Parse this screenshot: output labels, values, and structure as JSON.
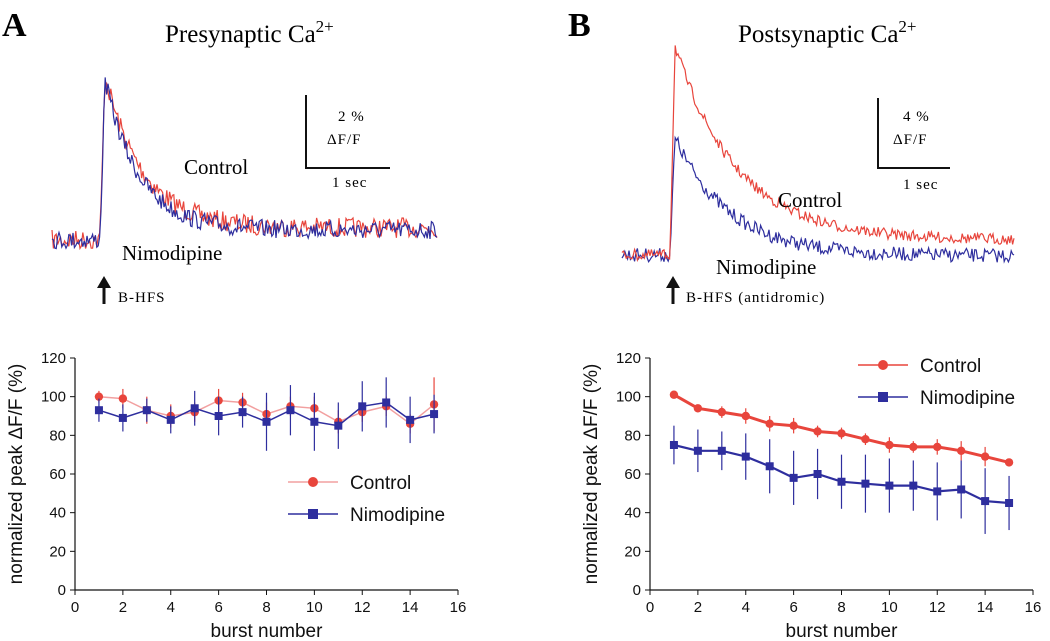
{
  "colors": {
    "control": "#e8453c",
    "nimodipine": "#2e2e9e",
    "control_light": "#f2a0a0",
    "axis": "#111111"
  },
  "panelA": {
    "letter": "A",
    "title": "Presynaptic Ca",
    "title_sup": "2+",
    "scale_pct": "2 %",
    "scale_unit": "ΔF/F",
    "scale_time": "1 sec",
    "label_control": "Control",
    "label_nimodipine": "Nimodipine",
    "stim_label": "B-HFS",
    "arrow_icon": "up-arrow-icon"
  },
  "panelB": {
    "letter": "B",
    "title": "Postsynaptic Ca",
    "title_sup": "2+",
    "scale_pct": "4 %",
    "scale_unit": "ΔF/F",
    "scale_time": "1 sec",
    "label_control": "Control",
    "label_nimodipine": "Nimodipine",
    "stim_label": "B-HFS (antidromic)",
    "arrow_icon": "up-arrow-icon"
  },
  "chart_data": [
    {
      "id": "chartA",
      "type": "line",
      "xlabel": "burst number",
      "ylabel": "normalized peak ΔF/F (%)",
      "xlim": [
        0,
        16
      ],
      "ylim": [
        0,
        120
      ],
      "xticks": [
        0,
        2,
        4,
        6,
        8,
        10,
        12,
        14,
        16
      ],
      "yticks": [
        0,
        20,
        40,
        60,
        80,
        100,
        120
      ],
      "legend_position": "bottom-right",
      "series": [
        {
          "name": "Control",
          "marker": "circle",
          "x": [
            1,
            2,
            3,
            4,
            5,
            6,
            7,
            8,
            9,
            10,
            11,
            12,
            13,
            14,
            15
          ],
          "values": [
            100,
            99,
            93,
            90,
            92,
            98,
            97,
            91,
            95,
            94,
            87,
            92,
            95,
            86,
            96
          ],
          "err": [
            3,
            5,
            7,
            6,
            5,
            6,
            5,
            6,
            5,
            6,
            6,
            5,
            5,
            5,
            14
          ]
        },
        {
          "name": "Nimodipine",
          "marker": "square",
          "x": [
            1,
            2,
            3,
            4,
            5,
            6,
            7,
            8,
            9,
            10,
            11,
            12,
            13,
            14,
            15
          ],
          "values": [
            93,
            89,
            93,
            88,
            94,
            90,
            92,
            87,
            93,
            87,
            85,
            95,
            97,
            88,
            91
          ],
          "err": [
            6,
            7,
            6,
            7,
            9,
            10,
            8,
            15,
            13,
            15,
            12,
            13,
            13,
            12,
            10
          ]
        }
      ]
    },
    {
      "id": "chartB",
      "type": "line",
      "xlabel": "burst number",
      "ylabel": "normalized peak ΔF/F (%)",
      "xlim": [
        0,
        16
      ],
      "ylim": [
        0,
        120
      ],
      "xticks": [
        0,
        2,
        4,
        6,
        8,
        10,
        12,
        14,
        16
      ],
      "yticks": [
        0,
        20,
        40,
        60,
        80,
        100,
        120
      ],
      "legend_position": "top-right",
      "series": [
        {
          "name": "Control",
          "marker": "circle",
          "x": [
            1,
            2,
            3,
            4,
            5,
            6,
            7,
            8,
            9,
            10,
            11,
            12,
            13,
            14,
            15
          ],
          "values": [
            101,
            94,
            92,
            90,
            86,
            85,
            82,
            81,
            78,
            75,
            74,
            74,
            72,
            69,
            66
          ],
          "err": [
            2,
            2,
            3,
            4,
            4,
            4,
            3,
            3,
            3,
            4,
            3,
            4,
            5,
            5,
            2
          ]
        },
        {
          "name": "Nimodipine",
          "marker": "square",
          "x": [
            1,
            2,
            3,
            4,
            5,
            6,
            7,
            8,
            9,
            10,
            11,
            12,
            13,
            14,
            15
          ],
          "values": [
            75,
            72,
            72,
            69,
            64,
            58,
            60,
            56,
            55,
            54,
            54,
            51,
            52,
            46,
            45
          ],
          "err": [
            10,
            11,
            10,
            12,
            14,
            14,
            13,
            14,
            15,
            14,
            13,
            15,
            15,
            17,
            14
          ]
        }
      ]
    }
  ]
}
